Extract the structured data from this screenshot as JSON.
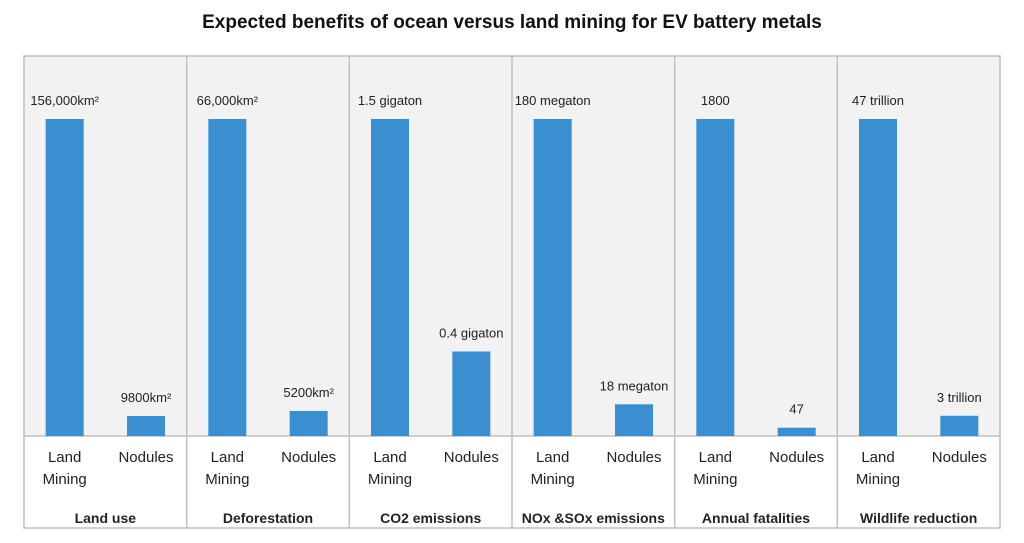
{
  "title": "Expected benefits of ocean versus land mining for EV battery metals",
  "colors": {
    "bar": "#3a8fd0",
    "panel_bg": "#f2f2f2",
    "border": "#bfbfbf",
    "text": "#222222"
  },
  "chart_data": {
    "type": "bar",
    "title": "Expected benefits of ocean versus land mining for EV battery metals",
    "categories": [
      "Land Mining",
      "Nodules"
    ],
    "grid": false,
    "panels": [
      {
        "group": "Land use",
        "values": [
          1.0,
          0.063
        ],
        "labels": [
          "156,000km²",
          "9800km²"
        ]
      },
      {
        "group": "Deforestation",
        "values": [
          1.0,
          0.079
        ],
        "labels": [
          "66,000km²",
          "5200km²"
        ]
      },
      {
        "group": "CO2 emissions",
        "values": [
          1.5,
          0.4
        ],
        "labels": [
          "1.5 gigaton",
          "0.4 gigaton"
        ]
      },
      {
        "group": "NOx &SOx emissions",
        "values": [
          180,
          18
        ],
        "labels": [
          "180 megaton",
          "18 megaton"
        ]
      },
      {
        "group": "Annual fatalities",
        "values": [
          1800,
          47
        ],
        "labels": [
          "1800",
          "47"
        ]
      },
      {
        "group": "Wildlife reduction",
        "values": [
          47,
          3
        ],
        "labels": [
          "47 trillion",
          "3 trillion"
        ]
      }
    ]
  }
}
